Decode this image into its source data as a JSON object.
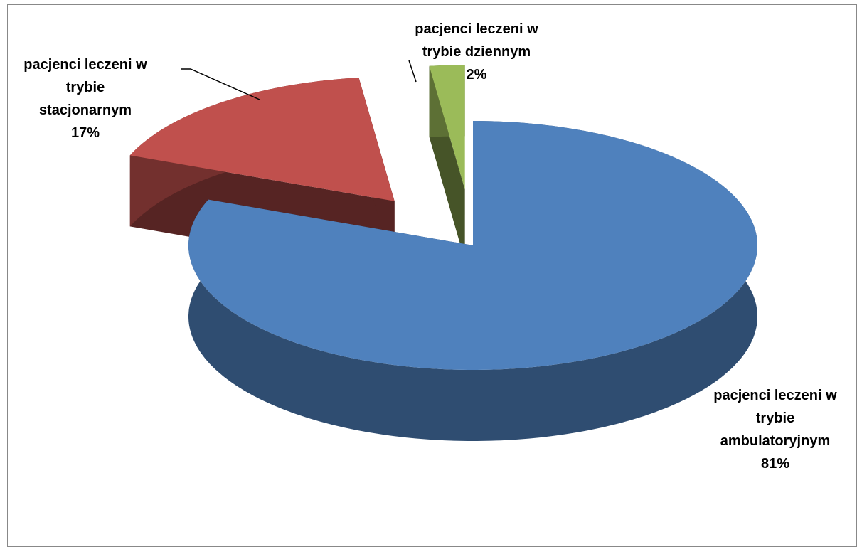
{
  "chart_data": {
    "type": "pie",
    "categories": [
      "pacjenci leczeni w trybie ambulatoryjnym",
      "pacjenci leczeni w trybie stacjonarnym",
      "pacjenci leczeni w trybie dziennym"
    ],
    "values": [
      81,
      17,
      2
    ],
    "value_labels": [
      "81%",
      "17%",
      "2%"
    ],
    "colors": [
      "#4f81bd",
      "#c0504d",
      "#9bbb59"
    ]
  }
}
